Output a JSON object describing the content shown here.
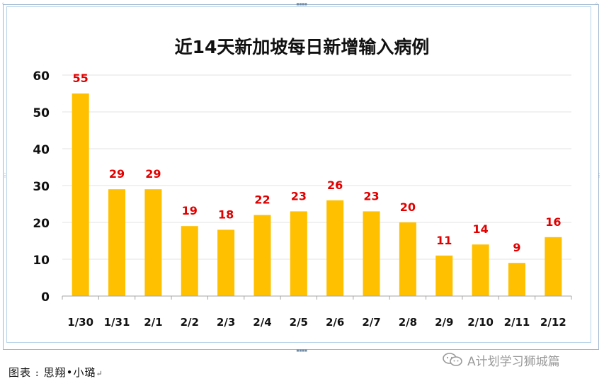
{
  "chart_data": {
    "type": "bar",
    "title": "近14天新加坡每日新增输入病例",
    "categories": [
      "1/30",
      "1/31",
      "2/1",
      "2/2",
      "2/3",
      "2/4",
      "2/5",
      "2/6",
      "2/7",
      "2/8",
      "2/9",
      "2/10",
      "2/11",
      "2/12"
    ],
    "values": [
      55,
      29,
      29,
      19,
      18,
      22,
      23,
      26,
      23,
      20,
      11,
      14,
      9,
      16
    ],
    "ylim": [
      0,
      60
    ],
    "yticks": [
      0,
      10,
      20,
      30,
      40,
      50,
      60
    ],
    "bar_color": "#ffc000",
    "label_color": "#e00000",
    "grid": true,
    "legend": "none"
  },
  "caption": "图表 : 思翔•小璐",
  "caption_mark": "↵",
  "watermark": {
    "text": "A计划学习狮城篇",
    "icon": "wechat-icon"
  }
}
